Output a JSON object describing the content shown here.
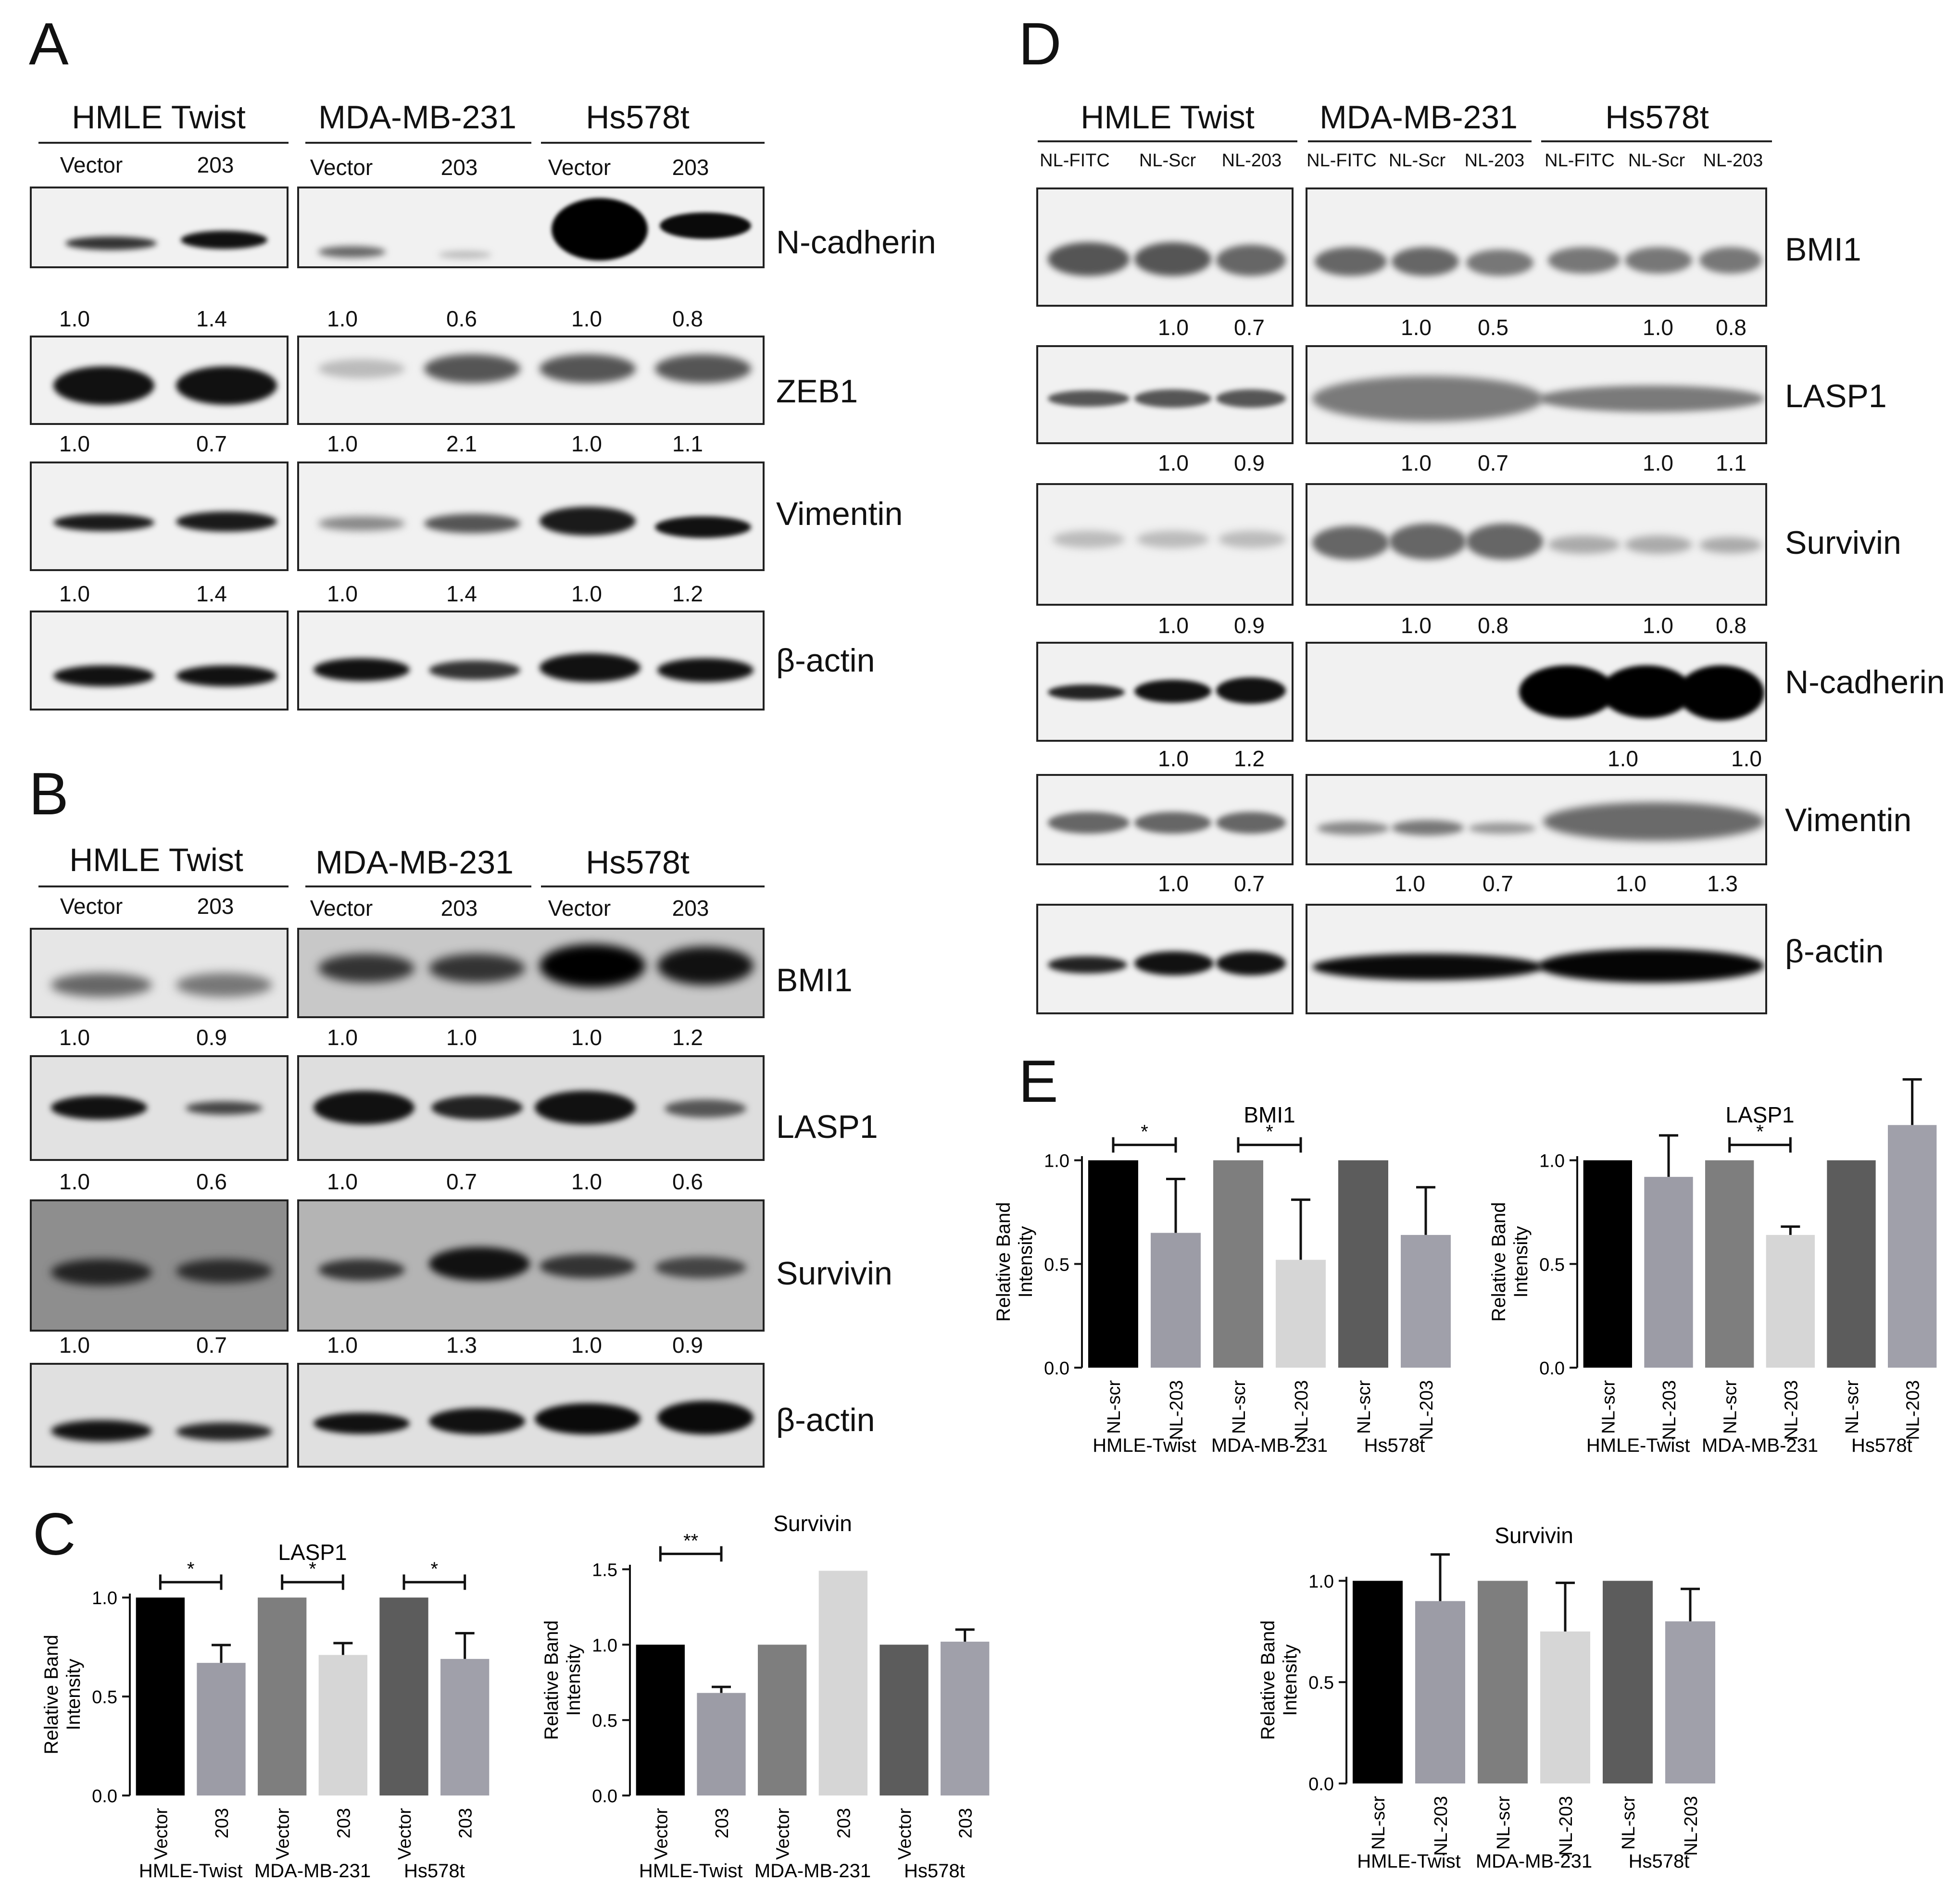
{
  "panels": {
    "A": {
      "letter": "A",
      "groups": [
        "HMLE Twist",
        "MDA-MB-231",
        "Hs578t"
      ],
      "lanes": [
        "Vector",
        "203",
        "Vector",
        "203",
        "Vector",
        "203"
      ],
      "rows": [
        {
          "protein": "N-cadherin",
          "values": [
            "1.0",
            "1.4",
            "1.0",
            "0.6",
            "1.0",
            "0.8"
          ]
        },
        {
          "protein": "ZEB1",
          "values": [
            "1.0",
            "0.7",
            "1.0",
            "2.1",
            "1.0",
            "1.1"
          ]
        },
        {
          "protein": "Vimentin",
          "values": [
            "1.0",
            "1.4",
            "1.0",
            "1.4",
            "1.0",
            "1.2"
          ]
        },
        {
          "protein": "β-actin",
          "values": []
        }
      ]
    },
    "B": {
      "letter": "B",
      "groups": [
        "HMLE Twist",
        "MDA-MB-231",
        "Hs578t"
      ],
      "lanes": [
        "Vector",
        "203",
        "Vector",
        "203",
        "Vector",
        "203"
      ],
      "rows": [
        {
          "protein": "BMI1",
          "values": [
            "1.0",
            "0.9",
            "1.0",
            "1.0",
            "1.0",
            "1.2"
          ]
        },
        {
          "protein": "LASP1",
          "values": [
            "1.0",
            "0.6",
            "1.0",
            "0.7",
            "1.0",
            "0.6"
          ]
        },
        {
          "protein": "Survivin",
          "values": [
            "1.0",
            "0.7",
            "1.0",
            "1.3",
            "1.0",
            "0.9"
          ]
        },
        {
          "protein": "β-actin",
          "values": []
        }
      ]
    },
    "C": {
      "letter": "C"
    },
    "D": {
      "letter": "D",
      "groups": [
        "HMLE Twist",
        "MDA-MB-231",
        "Hs578t"
      ],
      "lanes": [
        "NL-FITC",
        "NL-Scr",
        "NL-203",
        "NL-FITC",
        "NL-Scr",
        "NL-203",
        "NL-FITC",
        "NL-Scr",
        "NL-203"
      ],
      "rows": [
        {
          "protein": "BMI1",
          "values": [
            "1.0",
            "0.7",
            "1.0",
            "0.5",
            "1.0",
            "0.8"
          ]
        },
        {
          "protein": "LASP1",
          "values": [
            "1.0",
            "0.9",
            "1.0",
            "0.7",
            "1.0",
            "1.1"
          ]
        },
        {
          "protein": "Survivin",
          "values": [
            "1.0",
            "0.9",
            "1.0",
            "0.8",
            "1.0",
            "0.8"
          ]
        },
        {
          "protein": "N-cadherin",
          "values": [
            "1.0",
            "1.2",
            "1.0",
            "1.0"
          ]
        },
        {
          "protein": "Vimentin",
          "values": [
            "1.0",
            "0.7",
            "1.0",
            "0.7",
            "1.0",
            "1.3"
          ]
        },
        {
          "protein": "β-actin",
          "values": []
        }
      ]
    },
    "E": {
      "letter": "E"
    }
  },
  "chart_data": [
    {
      "panel": "C",
      "type": "bar",
      "title": "LASP1",
      "ylabel": "Relative Band Intensity",
      "ylim": [
        0,
        1.0
      ],
      "yticks": [
        "0.0",
        "0.5",
        "1.0"
      ],
      "categories": [
        "Vector",
        "203",
        "Vector",
        "203",
        "Vector",
        "203"
      ],
      "groups": [
        "HMLE-Twist",
        "MDA-MB-231",
        "Hs578t"
      ],
      "values": [
        1.0,
        0.67,
        1.0,
        0.71,
        1.0,
        0.69
      ],
      "errors": [
        0,
        0.09,
        0,
        0.06,
        0,
        0.13
      ],
      "colors": [
        "#000000",
        "#9c9ca6",
        "#7e7e7e",
        "#d6d6d6",
        "#5c5c5c",
        "#a0a0aa"
      ],
      "significance": [
        {
          "bars": [
            0,
            1
          ],
          "label": "*"
        },
        {
          "bars": [
            2,
            3
          ],
          "label": "*"
        },
        {
          "bars": [
            4,
            5
          ],
          "label": "*"
        }
      ]
    },
    {
      "panel": "C",
      "type": "bar",
      "title": "Survivin",
      "ylabel": "Relative Band Intensity",
      "ylim": [
        0,
        1.5
      ],
      "yticks": [
        "0.0",
        "0.5",
        "1.0",
        "1.5"
      ],
      "categories": [
        "Vector",
        "203",
        "Vector",
        "203",
        "Vector",
        "203"
      ],
      "groups": [
        "HMLE-Twist",
        "MDA-MB-231",
        "Hs578t"
      ],
      "values": [
        1.0,
        0.68,
        1.0,
        1.49,
        1.0,
        1.02
      ],
      "errors": [
        0,
        0.04,
        0,
        0,
        0,
        0.08
      ],
      "colors": [
        "#000000",
        "#9c9ca6",
        "#7e7e7e",
        "#d6d6d6",
        "#5c5c5c",
        "#a0a0aa"
      ],
      "significance": [
        {
          "bars": [
            0,
            1
          ],
          "label": "**"
        }
      ]
    },
    {
      "panel": "E",
      "type": "bar",
      "title": "BMI1",
      "ylabel": "Relative Band Intensity",
      "ylim": [
        0,
        1.0
      ],
      "yticks": [
        "0.0",
        "0.5",
        "1.0"
      ],
      "categories": [
        "NL-scr",
        "NL-203",
        "NL-scr",
        "NL-203",
        "NL-scr",
        "NL-203"
      ],
      "groups": [
        "HMLE-Twist",
        "MDA-MB-231",
        "Hs578t"
      ],
      "values": [
        1.0,
        0.65,
        1.0,
        0.52,
        1.0,
        0.64
      ],
      "errors": [
        0,
        0.26,
        0,
        0.29,
        0,
        0.23
      ],
      "colors": [
        "#000000",
        "#9c9ca6",
        "#7e7e7e",
        "#d6d6d6",
        "#5c5c5c",
        "#a0a0aa"
      ],
      "significance": [
        {
          "bars": [
            0,
            1
          ],
          "label": "*"
        },
        {
          "bars": [
            2,
            3
          ],
          "label": "*"
        }
      ]
    },
    {
      "panel": "E",
      "type": "bar",
      "title": "LASP1",
      "ylabel": "Relative Band Intensity",
      "ylim": [
        0,
        1.0
      ],
      "yticks": [
        "0.0",
        "0.5",
        "1.0"
      ],
      "categories": [
        "NL-scr",
        "NL-203",
        "NL-scr",
        "NL-203",
        "NL-scr",
        "NL-203"
      ],
      "groups": [
        "HMLE-Twist",
        "MDA-MB-231",
        "Hs578t"
      ],
      "values": [
        1.0,
        0.92,
        1.0,
        0.64,
        1.0,
        1.17
      ],
      "errors": [
        0,
        0.2,
        0,
        0.04,
        0,
        0.22
      ],
      "colors": [
        "#000000",
        "#9c9ca6",
        "#7e7e7e",
        "#d6d6d6",
        "#5c5c5c",
        "#a0a0aa"
      ],
      "significance": [
        {
          "bars": [
            2,
            3
          ],
          "label": "*"
        }
      ]
    },
    {
      "panel": "E",
      "type": "bar",
      "title": "Survivin",
      "ylabel": "Relative Band Intensity",
      "ylim": [
        0,
        1.0
      ],
      "yticks": [
        "0.0",
        "0.5",
        "1.0"
      ],
      "categories": [
        "NL-scr",
        "NL-203",
        "NL-scr",
        "NL-203",
        "NL-scr",
        "NL-203"
      ],
      "groups": [
        "HMLE-Twist",
        "MDA-MB-231",
        "Hs578t"
      ],
      "values": [
        1.0,
        0.9,
        1.0,
        0.75,
        1.0,
        0.8
      ],
      "errors": [
        0,
        0.23,
        0,
        0.24,
        0,
        0.16
      ],
      "colors": [
        "#000000",
        "#9c9ca6",
        "#7e7e7e",
        "#d6d6d6",
        "#5c5c5c",
        "#a0a0aa"
      ],
      "significance": []
    }
  ]
}
